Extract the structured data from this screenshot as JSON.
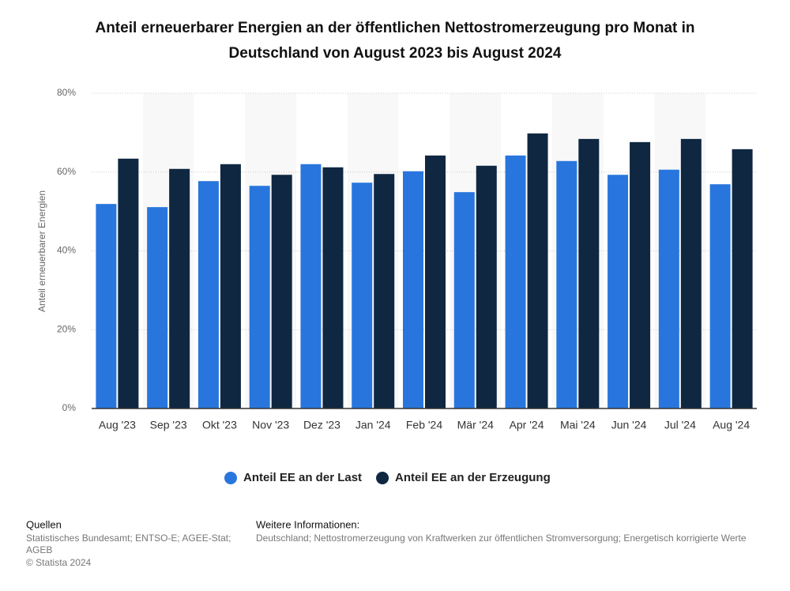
{
  "chart_data": {
    "type": "bar",
    "title": "Anteil erneuerbarer Energien an der öffentlichen Nettostromerzeugung pro Monat in Deutschland von August 2023 bis August 2024",
    "y_label": "Anteil erneuerbarer Energien",
    "categories": [
      "Aug '23",
      "Sep '23",
      "Okt '23",
      "Nov '23",
      "Dez '23",
      "Jan '24",
      "Feb '24",
      "Mär '24",
      "Apr '24",
      "Mai '24",
      "Jun '24",
      "Jul '24",
      "Aug '24"
    ],
    "series": [
      {
        "name": "Anteil EE an der Last",
        "color": "#2876dd",
        "values": [
          51.9,
          51.1,
          57.7,
          56.5,
          62.0,
          57.3,
          60.2,
          54.9,
          64.2,
          62.8,
          59.3,
          60.6,
          56.9
        ]
      },
      {
        "name": "Anteil EE an der Erzeugung",
        "color": "#0f2741",
        "values": [
          63.4,
          60.8,
          62.0,
          59.3,
          61.2,
          59.5,
          64.2,
          61.6,
          69.8,
          68.4,
          67.6,
          68.4,
          65.8
        ]
      }
    ],
    "ylim": [
      0,
      80
    ],
    "yticks": [
      {
        "value": 0,
        "label": "0%"
      },
      {
        "value": 20,
        "label": "20%"
      },
      {
        "value": 40,
        "label": "40%"
      },
      {
        "value": 60,
        "label": "60%"
      },
      {
        "value": 80,
        "label": "80%"
      }
    ],
    "grid": true
  },
  "footer": {
    "sources_title": "Quellen",
    "sources": "Statistisches Bundesamt; ENTSO-E; AGEE-Stat;",
    "sources2": "AGEB",
    "copyright": "© Statista 2024",
    "info_title": "Weitere Informationen:",
    "info": "Deutschland; Nettostromerzeugung von Kraftwerken zur öffentlichen Stromversorgung; Energetisch korrigierte Werte"
  }
}
